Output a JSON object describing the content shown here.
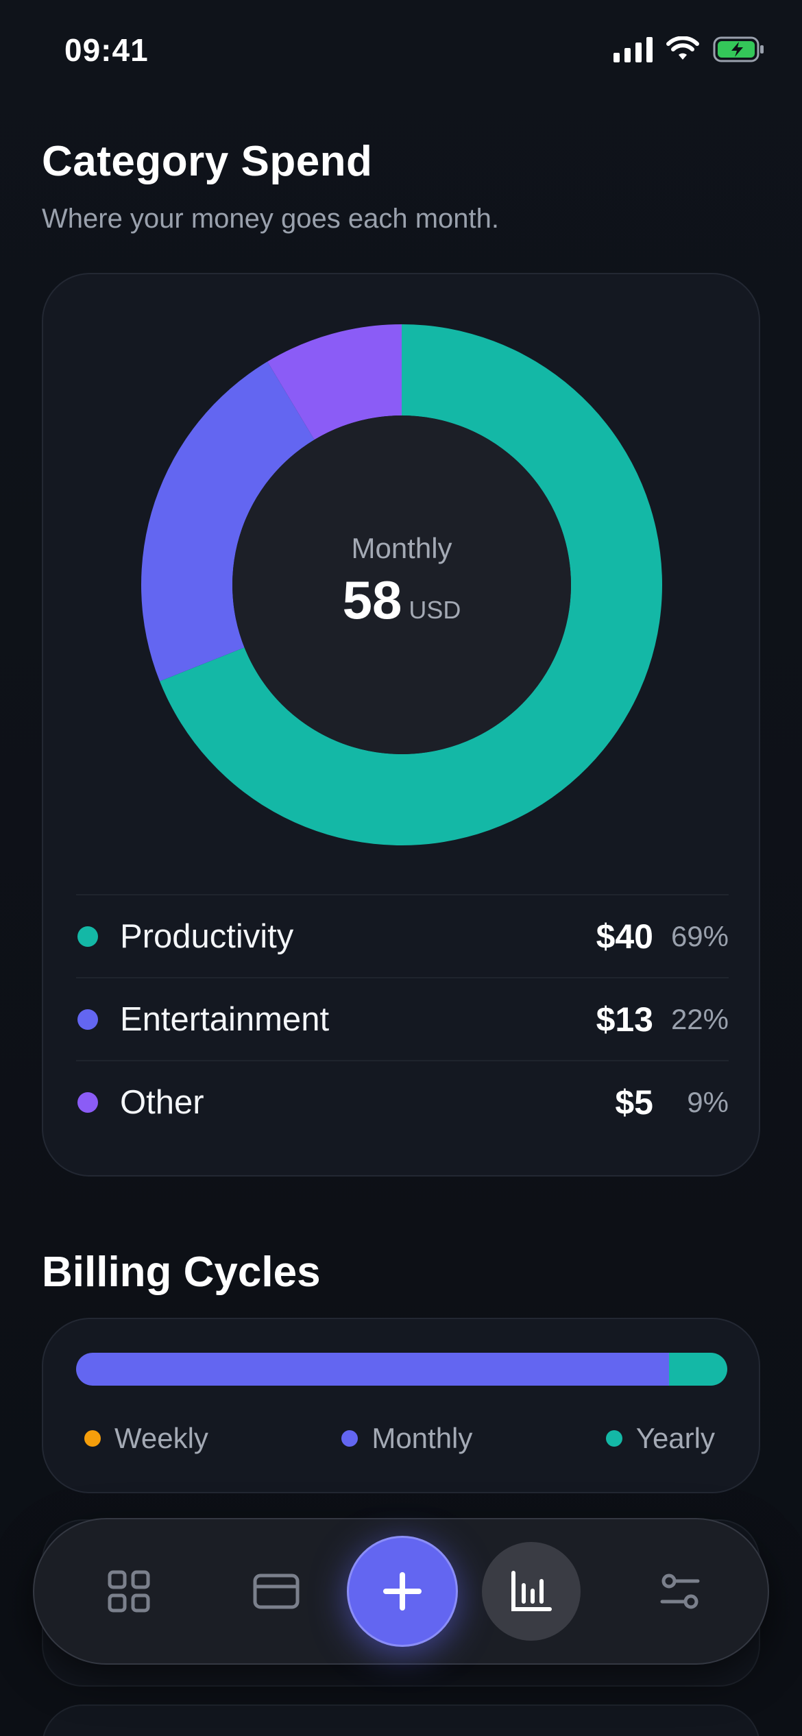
{
  "status_bar": {
    "time": "09:41",
    "icons": [
      "signal-icon",
      "wifi-icon",
      "battery-charging-icon"
    ]
  },
  "header": {
    "title": "Category Spend",
    "subtitle": "Where your money goes each month."
  },
  "spend_card": {
    "center_label": "Monthly",
    "center_value": "58",
    "center_unit": "USD",
    "categories": [
      {
        "name": "Productivity",
        "amount": "$40",
        "percent": "69%",
        "color": "#14b8a6"
      },
      {
        "name": "Entertainment",
        "amount": "$13",
        "percent": "22%",
        "color": "#6366f1"
      },
      {
        "name": "Other",
        "amount": "$5",
        "percent": "9%",
        "color": "#8b5cf6"
      }
    ]
  },
  "chart_data": {
    "type": "pie",
    "categories": [
      "Productivity",
      "Entertainment",
      "Other"
    ],
    "values": [
      40,
      13,
      5
    ],
    "colors": [
      "#14b8a6",
      "#6366f1",
      "#8b5cf6"
    ],
    "title": "",
    "donut": true
  },
  "billing": {
    "title": "Billing Cycles",
    "cycles": [
      {
        "name": "Weekly",
        "share": 0.0,
        "color": "#f59e0b"
      },
      {
        "name": "Monthly",
        "share": 0.91,
        "color": "#6366f1"
      },
      {
        "name": "Yearly",
        "share": 0.09,
        "color": "#14b8a6"
      }
    ]
  },
  "nav": {
    "items": [
      "dashboard-icon",
      "credit-card-icon",
      "plus-icon",
      "bar-chart-icon",
      "sliders-icon"
    ],
    "active": "bar-chart-icon"
  }
}
